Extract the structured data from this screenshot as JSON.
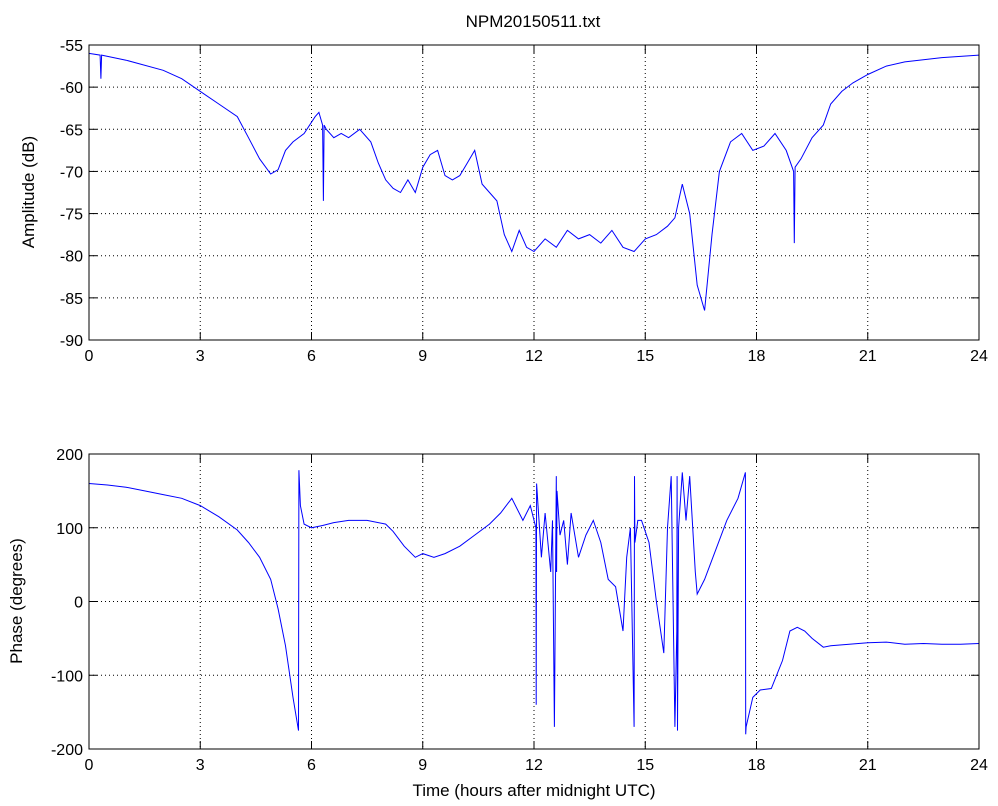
{
  "figure": {
    "title": "NPM20150511.txt",
    "background": "#ffffff",
    "line_color": "#0000ff"
  },
  "chart_data": [
    {
      "type": "line",
      "title": "NPM20150511.txt",
      "xlabel": "",
      "ylabel": "Amplitude (dB)",
      "xlim": [
        0,
        24
      ],
      "ylim": [
        -90,
        -55
      ],
      "x_ticks": [
        0,
        3,
        6,
        9,
        12,
        15,
        18,
        21,
        24
      ],
      "y_ticks": [
        -90,
        -85,
        -80,
        -75,
        -70,
        -65,
        -60,
        -55
      ],
      "grid": true,
      "series": [
        {
          "color": "#0000ff",
          "x": [
            0,
            0.3,
            0.32,
            0.34,
            1,
            2,
            2.5,
            3,
            3.5,
            4,
            4.3,
            4.6,
            4.9,
            5.1,
            5.3,
            5.5,
            5.8,
            6.1,
            6.2,
            6.3,
            6.32,
            6.34,
            6.4,
            6.6,
            6.8,
            7,
            7.3,
            7.6,
            7.8,
            8.0,
            8.2,
            8.4,
            8.6,
            8.8,
            9.0,
            9.2,
            9.4,
            9.6,
            9.8,
            10.0,
            10.2,
            10.4,
            10.6,
            10.8,
            11.0,
            11.2,
            11.4,
            11.6,
            11.8,
            12.0,
            12.3,
            12.6,
            12.9,
            13.2,
            13.5,
            13.8,
            14.1,
            14.4,
            14.7,
            15.0,
            15.3,
            15.6,
            15.8,
            16.0,
            16.2,
            16.4,
            16.6,
            16.8,
            17.0,
            17.3,
            17.6,
            17.9,
            18.2,
            18.5,
            18.8,
            19.0,
            19.02,
            19.04,
            19.2,
            19.5,
            19.8,
            20.0,
            20.3,
            20.6,
            21.0,
            21.5,
            22,
            23,
            24
          ],
          "y": [
            -56.0,
            -56.2,
            -59.0,
            -56.2,
            -56.8,
            -58.0,
            -59.0,
            -60.5,
            -62.0,
            -63.5,
            -66.0,
            -68.5,
            -70.3,
            -69.8,
            -67.5,
            -66.5,
            -65.5,
            -63.5,
            -63.0,
            -64.5,
            -73.5,
            -64.5,
            -65.0,
            -66.0,
            -65.5,
            -66.0,
            -65.0,
            -66.5,
            -69.0,
            -71.0,
            -72.0,
            -72.5,
            -71.0,
            -72.5,
            -69.5,
            -68.0,
            -67.5,
            -70.5,
            -71.0,
            -70.5,
            -69.0,
            -67.5,
            -71.5,
            -72.5,
            -73.5,
            -77.5,
            -79.5,
            -77.0,
            -79.0,
            -79.5,
            -78.0,
            -79.0,
            -77.0,
            -78.0,
            -77.5,
            -78.5,
            -77.0,
            -79.0,
            -79.5,
            -78.0,
            -77.5,
            -76.5,
            -75.5,
            -71.5,
            -75.0,
            -83.5,
            -86.5,
            -77.5,
            -70.0,
            -66.5,
            -65.5,
            -67.5,
            -67.0,
            -65.5,
            -67.5,
            -70.0,
            -78.5,
            -69.5,
            -68.5,
            -66.0,
            -64.5,
            -62.0,
            -60.5,
            -59.5,
            -58.5,
            -57.5,
            -57.0,
            -56.5,
            -56.2
          ]
        }
      ]
    },
    {
      "type": "line",
      "title": "",
      "xlabel": "Time (hours after midnight UTC)",
      "ylabel": "Phase (degrees)",
      "xlim": [
        0,
        24
      ],
      "ylim": [
        -200,
        200
      ],
      "x_ticks": [
        0,
        3,
        6,
        9,
        12,
        15,
        18,
        21,
        24
      ],
      "y_ticks": [
        -200,
        -100,
        0,
        100,
        200
      ],
      "grid": true,
      "series": [
        {
          "color": "#0000ff",
          "x": [
            0,
            0.5,
            1,
            1.5,
            2,
            2.5,
            3,
            3.5,
            4,
            4.3,
            4.6,
            4.9,
            5.1,
            5.3,
            5.5,
            5.65,
            5.66,
            5.7,
            5.8,
            6.0,
            6.3,
            6.6,
            7.0,
            7.5,
            8.0,
            8.2,
            8.5,
            8.8,
            9.0,
            9.3,
            9.6,
            10.0,
            10.4,
            10.8,
            11.1,
            11.4,
            11.7,
            11.9,
            12.05,
            12.06,
            12.07,
            12.2,
            12.3,
            12.45,
            12.5,
            12.55,
            12.6,
            12.61,
            12.62,
            12.7,
            12.8,
            12.9,
            13.0,
            13.2,
            13.4,
            13.6,
            13.8,
            14.0,
            14.2,
            14.4,
            14.5,
            14.6,
            14.7,
            14.71,
            14.72,
            14.8,
            14.9,
            15.1,
            15.3,
            15.5,
            15.6,
            15.7,
            15.8,
            15.85,
            15.86,
            15.87,
            15.9,
            16.0,
            16.1,
            16.2,
            16.35,
            16.4,
            16.6,
            16.9,
            17.2,
            17.5,
            17.7,
            17.71,
            17.72,
            17.9,
            18.1,
            18.4,
            18.7,
            18.9,
            19.1,
            19.3,
            19.5,
            19.8,
            20.0,
            20.5,
            21.0,
            21.5,
            22.0,
            22.5,
            23.0,
            23.5,
            24
          ],
          "y": [
            160,
            158,
            155,
            150,
            145,
            140,
            130,
            115,
            97,
            80,
            60,
            30,
            -10,
            -60,
            -130,
            -175,
            178,
            130,
            105,
            100,
            103,
            107,
            110,
            110,
            105,
            95,
            75,
            60,
            65,
            60,
            65,
            75,
            90,
            105,
            120,
            140,
            110,
            130,
            100,
            -140,
            160,
            60,
            120,
            40,
            110,
            -170,
            170,
            40,
            150,
            90,
            110,
            50,
            120,
            60,
            90,
            110,
            80,
            30,
            20,
            -40,
            60,
            100,
            -170,
            170,
            80,
            110,
            110,
            80,
            0,
            -70,
            100,
            170,
            -170,
            -40,
            170,
            -175,
            100,
            175,
            110,
            170,
            40,
            10,
            30,
            70,
            110,
            140,
            175,
            -180,
            -170,
            -130,
            -120,
            -118,
            -80,
            -40,
            -35,
            -40,
            -50,
            -62,
            -60,
            -58,
            -56,
            -55,
            -58,
            -57,
            -58,
            -58,
            -57
          ]
        }
      ]
    }
  ]
}
